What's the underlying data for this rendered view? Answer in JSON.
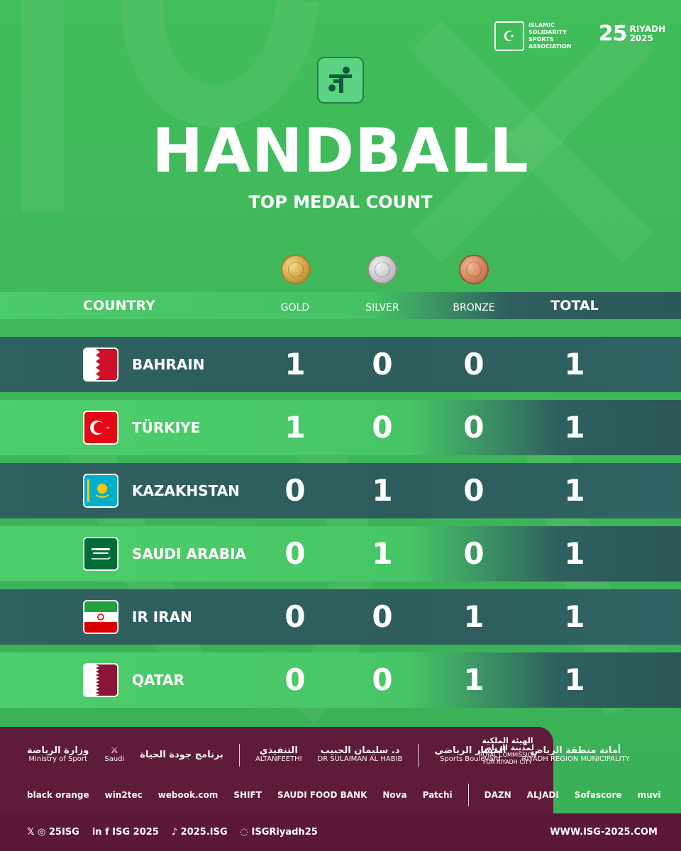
{
  "partners_top": {
    "isa_text": "ISLAMIC\nSOLIDARITY\nSPORTS\nASSOCIATION",
    "riyadh_num": "25",
    "riyadh_en": "RIYADH",
    "riyadh_year": "2025"
  },
  "title": "HANDBALL",
  "subtitle": "TOP MEDAL COUNT",
  "table": {
    "headers": {
      "country": "COUNTRY",
      "gold": "GOLD",
      "silver": "SILVER",
      "bronze": "BRONZE",
      "total": "TOTAL"
    },
    "rows": [
      {
        "country": "BAHRAIN",
        "gold": "1",
        "silver": "0",
        "bronze": "0",
        "total": "1"
      },
      {
        "country": "TÜRKIYE",
        "gold": "1",
        "silver": "0",
        "bronze": "0",
        "total": "1"
      },
      {
        "country": "KAZAKHSTAN",
        "gold": "0",
        "silver": "1",
        "bronze": "0",
        "total": "1"
      },
      {
        "country": "SAUDI ARABIA",
        "gold": "0",
        "silver": "1",
        "bronze": "0",
        "total": "1"
      },
      {
        "country": "IR IRAN",
        "gold": "0",
        "silver": "0",
        "bronze": "1",
        "total": "1"
      },
      {
        "country": "QATAR",
        "gold": "0",
        "silver": "0",
        "bronze": "1",
        "total": "1"
      }
    ]
  },
  "sponsors": {
    "row1": [
      {
        "ar": "وزارة الرياضة",
        "en": "Ministry of Sport"
      },
      {
        "ar": "",
        "en": "Saudi"
      },
      {
        "ar": "برنامج جودة الحياة",
        "en": ""
      },
      {
        "ar": "التنفيذي",
        "en": "ALTANFEETHI"
      },
      {
        "ar": "د. سليمان الحبيب",
        "en": "DR SULAIMAN AL HABIB"
      },
      {
        "ar": "المسار الرياضي",
        "en": "Sports Boulevard"
      },
      {
        "ar": "أمانة منطقة الرياض",
        "en": "RIYADH REGION MUNICIPALITY"
      },
      {
        "ar": "الهيئة الملكية لمدينة الرياض",
        "en": "ROYAL COMMISSION FOR RIYADH CITY"
      }
    ],
    "row2": [
      "black orange",
      "win2tec",
      "webook.com",
      "SHIFT",
      "SAUDI FOOD BANK",
      "Nova",
      "Patchi",
      "DAZN",
      "ALJADI",
      "Sofascore",
      "muvi"
    ]
  },
  "footer": {
    "social_1": "25ISG",
    "social_2": "ISG 2025",
    "social_3": "2025.ISG",
    "social_4": "ISGRiyadh25",
    "website": "WWW.ISG-2025.COM"
  },
  "colors": {
    "bg_green": "#41bd5a",
    "row_dark": "#2e5d5d",
    "sponsor_bg": "#5f1b3a"
  }
}
